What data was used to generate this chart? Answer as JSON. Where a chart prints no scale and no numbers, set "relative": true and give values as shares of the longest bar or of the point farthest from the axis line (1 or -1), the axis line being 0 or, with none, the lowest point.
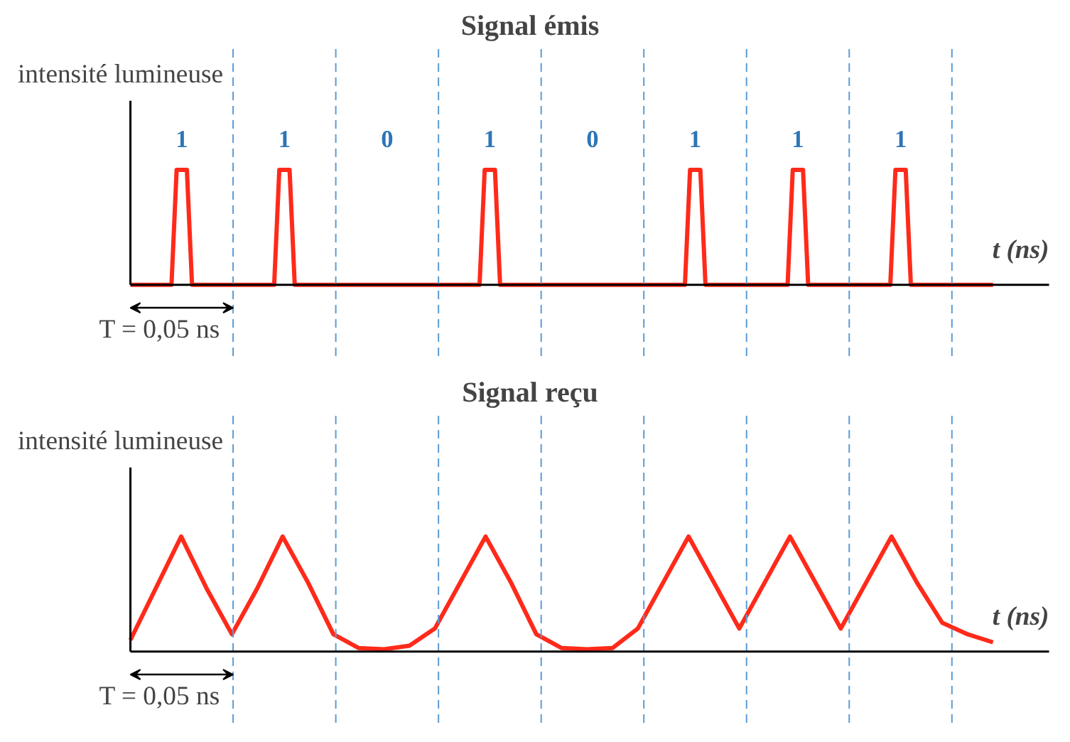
{
  "chart_data": [
    {
      "type": "line",
      "title": "Signal émis",
      "ylabel": "intensité lumineuse",
      "xlabel": "t (ns)",
      "relative": true,
      "tick_labels": false,
      "categories": [
        null,
        null,
        null,
        null,
        null,
        null,
        null,
        null,
        null,
        null,
        null,
        null,
        null,
        null,
        null,
        null,
        null,
        null,
        null,
        null,
        null,
        null,
        null,
        null,
        null,
        null,
        null,
        null,
        null,
        null,
        null,
        null,
        null,
        null,
        null,
        null,
        null,
        null,
        null,
        null,
        null,
        null,
        null,
        null,
        null,
        null,
        null,
        null,
        null,
        null,
        null,
        null,
        null,
        null,
        null,
        null,
        null,
        null,
        null,
        null,
        null,
        null,
        null,
        null,
        null,
        null,
        null,
        null,
        null,
        null,
        null,
        null,
        null,
        null,
        null,
        null,
        null,
        null,
        null,
        null,
        null,
        null,
        null,
        null,
        null,
        null,
        null,
        null,
        null,
        null,
        null,
        null,
        null,
        null,
        null,
        null,
        null,
        null,
        null,
        null,
        null,
        null,
        null,
        null,
        null,
        null,
        null,
        null,
        null,
        null,
        null,
        null,
        null,
        null,
        null,
        null,
        null,
        null,
        null,
        null,
        null,
        null,
        null,
        null,
        null,
        null,
        null,
        null,
        null,
        null,
        null,
        null,
        null,
        null,
        null,
        null,
        null,
        null,
        null,
        null,
        null,
        null,
        null,
        null,
        null,
        null,
        null,
        null,
        null,
        null,
        null,
        null,
        null,
        null,
        null,
        null,
        null,
        null,
        null,
        null,
        null,
        null,
        null,
        null,
        null,
        null,
        null,
        null,
        null
      ],
      "series": [
        {
          "color": "#ff2a1a",
          "values": [
            0,
            0,
            0,
            0,
            0,
            0,
            0,
            0,
            0,
            1,
            1,
            1,
            0,
            0,
            0,
            0,
            0,
            0,
            0,
            0,
            0,
            0,
            0,
            0,
            0,
            0,
            0,
            0,
            0,
            1,
            1,
            1,
            0,
            0,
            0,
            0,
            0,
            0,
            0,
            0,
            0,
            0,
            0,
            0,
            0,
            0,
            0,
            0,
            0,
            0,
            0,
            0,
            0,
            0,
            0,
            0,
            0,
            0,
            0,
            0,
            0,
            0,
            0,
            0,
            0,
            0,
            0,
            0,
            0,
            1,
            1,
            1,
            0,
            0,
            0,
            0,
            0,
            0,
            0,
            0,
            0,
            0,
            0,
            0,
            0,
            0,
            0,
            0,
            0,
            0,
            0,
            0,
            0,
            0,
            0,
            0,
            0,
            0,
            0,
            0,
            0,
            0,
            0,
            0,
            0,
            0,
            0,
            0,
            0,
            1,
            1,
            1,
            0,
            0,
            0,
            0,
            0,
            0,
            0,
            0,
            0,
            0,
            0,
            0,
            0,
            0,
            0,
            0,
            0,
            1,
            1,
            1,
            0,
            0,
            0,
            0,
            0,
            0,
            0,
            0,
            0,
            0,
            0,
            0,
            0,
            0,
            0,
            0,
            0,
            1,
            1,
            1,
            0,
            0,
            0,
            0,
            0,
            0,
            0,
            0,
            0,
            0,
            0,
            0,
            0,
            0,
            0,
            0,
            0
          ]
        }
      ],
      "grid": "x",
      "annotations": [
        "T = 0,05 ns",
        "1",
        "1",
        "0",
        "1",
        "0",
        "1",
        "1",
        "1"
      ]
    },
    {
      "type": "line",
      "title": "Signal reçu",
      "ylabel": "intensité lumineuse",
      "xlabel": "t (ns)",
      "relative": true,
      "tick_labels": false,
      "categories": [
        null,
        null,
        null,
        null,
        null,
        null,
        null,
        null,
        null,
        null,
        null,
        null,
        null,
        null,
        null,
        null,
        null,
        null,
        null,
        null,
        null,
        null,
        null,
        null,
        null,
        null,
        null,
        null,
        null,
        null,
        null,
        null,
        null,
        null,
        null
      ],
      "series": [
        {
          "color": "#ff2a1a",
          "values": [
            0.1,
            0.55,
            1,
            0.55,
            0.15,
            0.55,
            1,
            0.6,
            0.15,
            0.03,
            0.02,
            0.05,
            0.2,
            0.6,
            1,
            0.6,
            0.15,
            0.03,
            0.02,
            0.03,
            0.2,
            0.6,
            1,
            0.6,
            0.2,
            0.6,
            1,
            0.6,
            0.2,
            0.6,
            1,
            0.6,
            0.25,
            0.15,
            0.08
          ]
        }
      ],
      "grid": "x",
      "annotations": [
        "T = 0,05 ns"
      ]
    }
  ]
}
